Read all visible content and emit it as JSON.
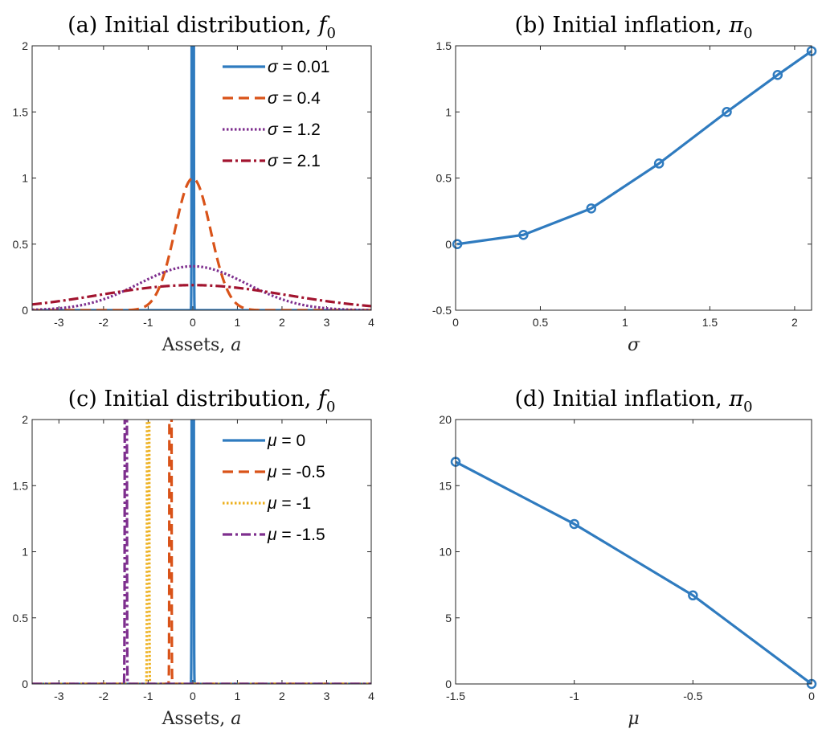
{
  "colors": {
    "blue": "#2F7BBF",
    "orange": "#D95319",
    "yellow": "#EDB120",
    "purple": "#7E2F8E",
    "darkred": "#A2142F",
    "axis": "#262626"
  },
  "chart_data": [
    {
      "id": "a",
      "type": "line",
      "title": "(a) Initial distribution, f0",
      "xlabel": "Assets, a",
      "ylabel": "",
      "xlim": [
        -3.6,
        4
      ],
      "ylim": [
        0,
        2
      ],
      "xticks": [
        -3,
        -2,
        -1,
        0,
        1,
        2,
        3,
        4
      ],
      "xtick_labels": [
        "-3",
        "-2",
        "-1",
        "0",
        "1",
        "2",
        "3",
        "4"
      ],
      "yticks": [
        0,
        0.5,
        1,
        1.5,
        2
      ],
      "ytick_labels": [
        "0",
        "0.5",
        "1",
        "1.5",
        "2"
      ],
      "legend_position": "top-right",
      "series": [
        {
          "name": "σ = 0.01",
          "kind": "normal",
          "mu": 0,
          "sigma": 0.01,
          "color": "blue",
          "dash": "solid"
        },
        {
          "name": "σ = 0.4",
          "kind": "normal",
          "mu": 0,
          "sigma": 0.4,
          "color": "orange",
          "dash": "dashed"
        },
        {
          "name": "σ = 1.2",
          "kind": "normal",
          "mu": 0,
          "sigma": 1.2,
          "color": "purple",
          "dash": "dotted"
        },
        {
          "name": "σ = 2.1",
          "kind": "normal",
          "mu": 0,
          "sigma": 2.1,
          "color": "darkred",
          "dash": "dashdot"
        }
      ]
    },
    {
      "id": "b",
      "type": "line",
      "title": "(b) Initial inflation, π0",
      "xlabel": "σ",
      "ylabel": "",
      "xlim": [
        0,
        2.1
      ],
      "ylim": [
        -0.5,
        1.5
      ],
      "xticks": [
        0,
        0.5,
        1,
        1.5,
        2
      ],
      "xtick_labels": [
        "0",
        "0.5",
        "1",
        "1.5",
        "2"
      ],
      "yticks": [
        -0.5,
        0,
        0.5,
        1,
        1.5
      ],
      "ytick_labels": [
        "-0.5",
        "0",
        "0.5",
        "1",
        "1.5"
      ],
      "series": [
        {
          "name": "",
          "x": [
            0.01,
            0.4,
            0.8,
            1.2,
            1.6,
            1.9,
            2.1
          ],
          "y": [
            0.0,
            0.07,
            0.27,
            0.61,
            1.0,
            1.28,
            1.46
          ],
          "color": "blue",
          "dash": "solid",
          "markers": true
        }
      ]
    },
    {
      "id": "c",
      "type": "line",
      "title": "(c) Initial distribution, f0",
      "xlabel": "Assets, a",
      "ylabel": "",
      "xlim": [
        -3.6,
        4
      ],
      "ylim": [
        0,
        2
      ],
      "xticks": [
        -3,
        -2,
        -1,
        0,
        1,
        2,
        3,
        4
      ],
      "xtick_labels": [
        "-3",
        "-2",
        "-1",
        "0",
        "1",
        "2",
        "3",
        "4"
      ],
      "yticks": [
        0,
        0.5,
        1,
        1.5,
        2
      ],
      "ytick_labels": [
        "0",
        "0.5",
        "1",
        "1.5",
        "2"
      ],
      "legend_position": "top-right",
      "series": [
        {
          "name": "μ = 0",
          "kind": "normal",
          "mu": 0,
          "sigma": 0.01,
          "color": "blue",
          "dash": "solid"
        },
        {
          "name": "μ = -0.5",
          "kind": "normal",
          "mu": -0.5,
          "sigma": 0.01,
          "color": "orange",
          "dash": "dashed"
        },
        {
          "name": "μ = -1",
          "kind": "normal",
          "mu": -1,
          "sigma": 0.01,
          "color": "yellow",
          "dash": "dotted"
        },
        {
          "name": "μ = -1.5",
          "kind": "normal",
          "mu": -1.5,
          "sigma": 0.01,
          "color": "purple",
          "dash": "dashdot"
        }
      ]
    },
    {
      "id": "d",
      "type": "line",
      "title": "(d) Initial inflation, π0",
      "xlabel": "μ",
      "ylabel": "",
      "xlim": [
        -1.5,
        0
      ],
      "ylim": [
        0,
        20
      ],
      "xticks": [
        -1.5,
        -1,
        -0.5,
        0
      ],
      "xtick_labels": [
        "-1.5",
        "-1",
        "-0.5",
        "0"
      ],
      "yticks": [
        0,
        5,
        10,
        15,
        20
      ],
      "ytick_labels": [
        "0",
        "5",
        "10",
        "15",
        "20"
      ],
      "series": [
        {
          "name": "",
          "x": [
            -1.5,
            -1,
            -0.5,
            0
          ],
          "y": [
            16.8,
            12.1,
            6.7,
            0.0
          ],
          "color": "blue",
          "dash": "solid",
          "markers": true
        }
      ]
    }
  ]
}
